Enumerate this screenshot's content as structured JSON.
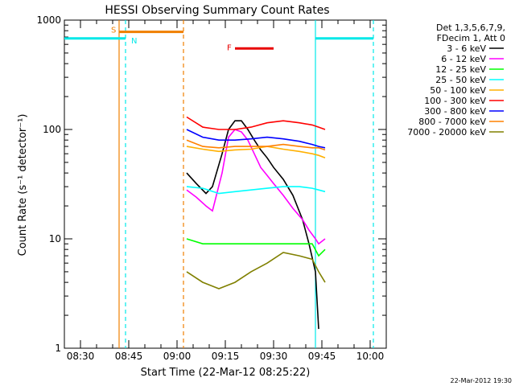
{
  "chart_data": {
    "type": "line",
    "title": "HESSI Observing Summary Count Rates",
    "xlabel": "Start Time (22-Mar-12 08:25:22)",
    "ylabel": "Count Rate (s⁻¹ detector⁻¹)",
    "ylog": true,
    "ylim": [
      1,
      1000
    ],
    "y_ticks": [
      "1",
      "10",
      "100",
      "1000"
    ],
    "x_range_minutes": [
      "08:25",
      "10:05"
    ],
    "x_ticks": [
      "08:30",
      "08:45",
      "09:00",
      "09:15",
      "09:30",
      "09:45",
      "10:00"
    ],
    "timestamp": "22-Mar-2012 19:30",
    "legend": {
      "placement": "right",
      "header": [
        "Det 1,3,5,6,7,9,",
        "FDecim 1, Att 0"
      ]
    },
    "flags": [
      {
        "label": "S",
        "start": "08:42",
        "end": "09:02",
        "level": 780,
        "color": "#f07f00"
      },
      {
        "label": "F",
        "start": "09:18",
        "end": "09:30",
        "level": 550,
        "color": "#e80000"
      },
      {
        "label": "N",
        "start": "08:25",
        "end": "08:44",
        "level": 680,
        "color": "#00e8e8"
      },
      {
        "label": "",
        "start": "09:43",
        "end": "10:01",
        "level": 680,
        "color": "#00e8e8"
      }
    ],
    "vlines": [
      {
        "time": "08:42",
        "color": "#f07f00",
        "style": "solid"
      },
      {
        "time": "08:44",
        "color": "#00e8e8",
        "style": "dashed"
      },
      {
        "time": "09:02",
        "color": "#f07f00",
        "style": "dashed"
      },
      {
        "time": "09:43",
        "color": "#00e8e8",
        "style": "solid"
      },
      {
        "time": "10:01",
        "color": "#00e8e8",
        "style": "dashed"
      }
    ],
    "series": [
      {
        "name": "3 - 6 keV",
        "color": "#000000",
        "x": [
          "09:03",
          "09:06",
          "09:09",
          "09:11",
          "09:14",
          "09:16",
          "09:18",
          "09:20",
          "09:22",
          "09:24",
          "09:26",
          "09:28",
          "09:30",
          "09:33",
          "09:36",
          "09:39",
          "09:41",
          "09:43",
          "09:44"
        ],
        "y": [
          40,
          32,
          26,
          30,
          60,
          100,
          120,
          120,
          100,
          80,
          65,
          55,
          45,
          35,
          25,
          15,
          9,
          5,
          1.5
        ]
      },
      {
        "name": "6 - 12 keV",
        "color": "#ff00ff",
        "x": [
          "09:03",
          "09:06",
          "09:09",
          "09:11",
          "09:14",
          "09:16",
          "09:18",
          "09:20",
          "09:22",
          "09:24",
          "09:26",
          "09:28",
          "09:30",
          "09:33",
          "09:36",
          "09:39",
          "09:41",
          "09:43",
          "09:44",
          "09:46"
        ],
        "y": [
          28,
          24,
          20,
          18,
          40,
          85,
          100,
          95,
          80,
          60,
          45,
          38,
          32,
          25,
          19,
          15,
          12,
          10,
          9,
          10
        ]
      },
      {
        "name": "12 - 25 keV",
        "color": "#00ff00",
        "x": [
          "09:03",
          "09:08",
          "09:13",
          "09:18",
          "09:23",
          "09:28",
          "09:33",
          "09:38",
          "09:42",
          "09:44",
          "09:46"
        ],
        "y": [
          10,
          9,
          9,
          9,
          9,
          9,
          9,
          9,
          9,
          7,
          8
        ]
      },
      {
        "name": "25 - 50 keV",
        "color": "#00ffff",
        "x": [
          "09:03",
          "09:08",
          "09:13",
          "09:18",
          "09:23",
          "09:28",
          "09:33",
          "09:38",
          "09:42",
          "09:44",
          "09:46"
        ],
        "y": [
          30,
          29,
          26,
          27,
          28,
          29,
          30,
          30,
          29,
          28,
          27
        ]
      },
      {
        "name": "50 - 100 keV",
        "color": "#ffb000",
        "x": [
          "09:03",
          "09:08",
          "09:13",
          "09:18",
          "09:23",
          "09:28",
          "09:33",
          "09:38",
          "09:42",
          "09:44",
          "09:46"
        ],
        "y": [
          70,
          66,
          63,
          65,
          66,
          70,
          66,
          63,
          60,
          58,
          55
        ]
      },
      {
        "name": "100 - 300 keV",
        "color": "#ff0000",
        "x": [
          "09:03",
          "09:08",
          "09:13",
          "09:18",
          "09:23",
          "09:28",
          "09:33",
          "09:38",
          "09:42",
          "09:44",
          "09:46"
        ],
        "y": [
          130,
          105,
          100,
          100,
          105,
          115,
          120,
          115,
          110,
          105,
          100
        ]
      },
      {
        "name": "300 - 800 keV",
        "color": "#0000ff",
        "x": [
          "09:03",
          "09:08",
          "09:13",
          "09:18",
          "09:23",
          "09:28",
          "09:33",
          "09:38",
          "09:42",
          "09:44",
          "09:46"
        ],
        "y": [
          100,
          85,
          80,
          80,
          82,
          85,
          82,
          78,
          73,
          70,
          68
        ]
      },
      {
        "name": "800 - 7000 keV",
        "color": "#ff8000",
        "x": [
          "09:03",
          "09:08",
          "09:13",
          "09:18",
          "09:23",
          "09:28",
          "09:33",
          "09:38",
          "09:42",
          "09:44",
          "09:46"
        ],
        "y": [
          80,
          70,
          68,
          70,
          70,
          70,
          73,
          70,
          68,
          68,
          65
        ]
      },
      {
        "name": "7000 - 20000 keV",
        "color": "#808000",
        "x": [
          "09:03",
          "09:08",
          "09:13",
          "09:18",
          "09:23",
          "09:28",
          "09:33",
          "09:38",
          "09:42",
          "09:44",
          "09:46"
        ],
        "y": [
          5,
          4,
          3.5,
          4,
          5,
          6,
          7.5,
          7,
          6.5,
          5,
          4
        ]
      }
    ]
  }
}
